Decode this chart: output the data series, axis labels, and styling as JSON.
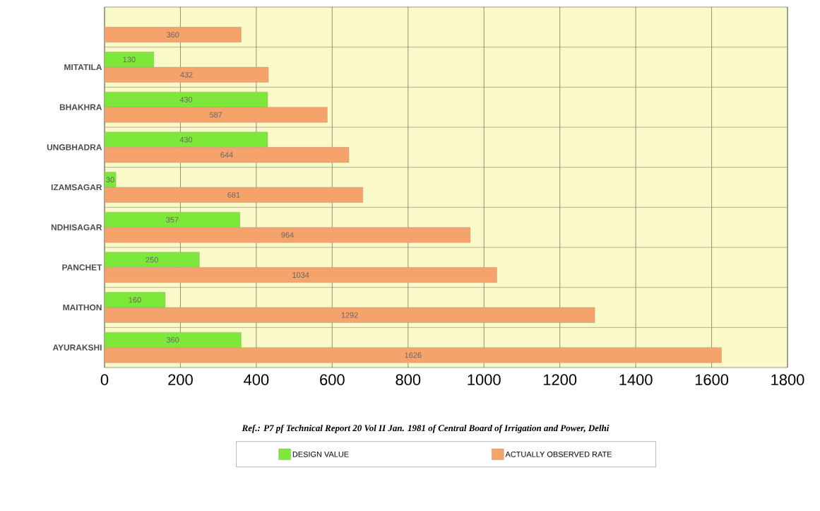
{
  "chart_data": {
    "type": "bar",
    "orientation": "horizontal",
    "categories": [
      null,
      "MITATILA",
      "BHAKHRA",
      "UNGBHADRA",
      "IZAMSAGAR",
      "NDHISAGAR",
      "PANCHET",
      "MAITHON",
      "AYURAKSHI"
    ],
    "series": [
      {
        "name": "DESIGN VALUE",
        "color": "#7ee83a",
        "values": [
          null,
          130,
          430,
          430,
          30,
          357,
          250,
          160,
          360
        ]
      },
      {
        "name": "ACTUALLY OBSERVED RATE",
        "color": "#f5a36a",
        "values": [
          360,
          432,
          587,
          644,
          681,
          964,
          1034,
          1292,
          1626
        ]
      }
    ],
    "xlim": [
      0,
      1800
    ],
    "xticks": [
      0,
      200,
      400,
      600,
      800,
      1000,
      1200,
      1400,
      1600,
      1800
    ],
    "grid": true,
    "legend": "bottom",
    "data_labels": true,
    "annotations": [
      "Ref.: P7 pf Technical Report 20 Vol II Jan. 1981 of Central Board of Irrigation and Power, Delhi"
    ]
  }
}
